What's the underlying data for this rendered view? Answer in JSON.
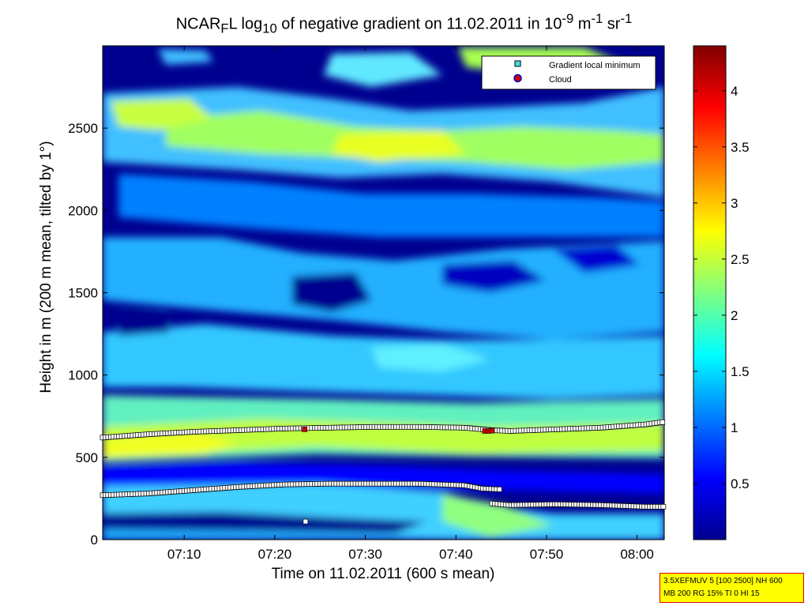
{
  "title": {
    "main": "NCAR",
    "sub1": "F",
    "mid": "L log",
    "sub2": "10",
    "rest": " of negative gradient on 11.02.2011 in 10",
    "sup1": "-9",
    "unit1": " m",
    "sup2": "-1",
    "unit2": " sr",
    "sup3": "-1"
  },
  "info_box": {
    "line1": "3.5XEFMUV 5 [100 2500] NH 600",
    "line2": "MB 200 RG 15% TI 0 HI 15"
  },
  "colors": {
    "cmap": [
      "#00008f",
      "#0000ff",
      "#0080ff",
      "#00ffff",
      "#80ff80",
      "#ffff00",
      "#ff8000",
      "#ff0000",
      "#800000"
    ],
    "marker_fill": "#ffffff",
    "cloud_color": "#cc0000"
  },
  "chart_data": {
    "type": "heatmap",
    "xlabel": "Time on 11.02.2011 (600 s mean)",
    "ylabel": "Height in m (200 m mean, tilted by 1°)",
    "x_ticks": [
      "07:10",
      "07:20",
      "07:30",
      "07:40",
      "07:50",
      "08:00"
    ],
    "x_tick_minutes": [
      430,
      440,
      450,
      460,
      470,
      480
    ],
    "xlim_minutes": [
      421,
      483
    ],
    "y_ticks": [
      "0",
      "500",
      "1000",
      "1500",
      "2000",
      "2500"
    ],
    "y_tick_values": [
      0,
      500,
      1000,
      1500,
      2000,
      2500
    ],
    "ylim": [
      0,
      3000
    ],
    "colorbar": {
      "range": [
        0,
        4.4
      ],
      "ticks": [
        "0.5",
        "1",
        "1.5",
        "2",
        "2.5",
        "3",
        "3.5",
        "4"
      ],
      "tick_values": [
        0.5,
        1,
        1.5,
        2,
        2.5,
        3,
        3.5,
        4
      ]
    },
    "legend": {
      "placement": "top-right",
      "entries": [
        "Gradient local minimum",
        "Cloud"
      ]
    },
    "series": [
      {
        "name": "Gradient local minimum",
        "layer": "upper",
        "minutes": [
          421,
          426,
          431,
          436,
          441,
          446,
          451,
          456,
          461,
          464,
          466,
          471,
          476,
          481,
          483
        ],
        "heights": [
          620,
          640,
          655,
          665,
          675,
          680,
          685,
          685,
          680,
          665,
          660,
          670,
          680,
          700,
          715
        ]
      },
      {
        "name": "Gradient local minimum",
        "layer": "lower",
        "minutes": [
          421,
          426,
          431,
          436,
          441,
          446,
          451,
          456,
          461,
          463,
          465
        ],
        "heights": [
          270,
          280,
          300,
          320,
          335,
          340,
          340,
          340,
          330,
          310,
          305
        ]
      },
      {
        "name": "Gradient local minimum",
        "layer": "lowest",
        "minutes": [
          464,
          466,
          471,
          476,
          481,
          483
        ],
        "heights": [
          220,
          210,
          215,
          210,
          200,
          200
        ]
      },
      {
        "name": "Gradient local minimum",
        "layer": "isolated",
        "minutes": [
          443.4
        ],
        "heights": [
          110
        ]
      },
      {
        "name": "Cloud",
        "minutes": [
          443.3,
          463.2,
          463.6,
          464.0
        ],
        "heights": [
          670,
          660,
          660,
          662
        ]
      }
    ]
  }
}
